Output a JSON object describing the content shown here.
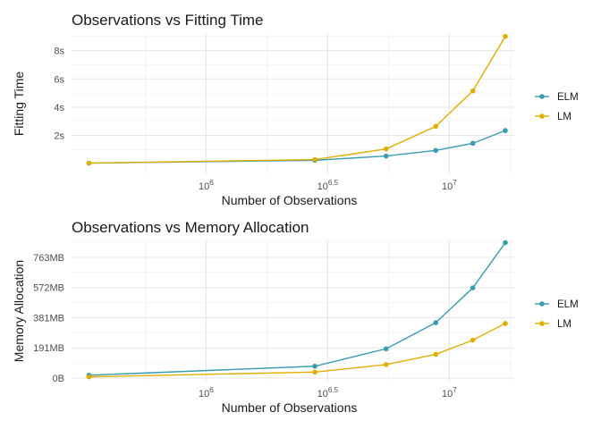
{
  "chart_data": [
    {
      "type": "line",
      "title": "Observations vs Fitting Time",
      "xlabel": "Number of Observations",
      "ylabel": "Fitting Time",
      "x_scale": "log10",
      "x": [
        330000,
        2800000,
        5500000,
        8800000,
        12500000,
        17000000
      ],
      "xlim": [
        280000,
        18500000
      ],
      "x_ticks": [
        {
          "base": "10",
          "exp": "6",
          "value": 1000000
        },
        {
          "base": "10",
          "exp": "6.5",
          "value": 3162278
        },
        {
          "base": "10",
          "exp": "7",
          "value": 10000000
        }
      ],
      "ylim": [
        -0.8,
        9.3
      ],
      "y_ticks": [
        {
          "label": "2s",
          "value": 2
        },
        {
          "label": "4s",
          "value": 4
        },
        {
          "label": "6s",
          "value": 6
        },
        {
          "label": "8s",
          "value": 8
        }
      ],
      "series": [
        {
          "name": "ELM",
          "color": "#3a9bb0",
          "values": [
            0.05,
            0.25,
            0.55,
            0.95,
            1.45,
            2.35
          ]
        },
        {
          "name": "LM",
          "color": "#e0ae00",
          "values": [
            0.05,
            0.3,
            1.05,
            2.65,
            5.15,
            9.0
          ]
        }
      ],
      "legend": "right",
      "grid": true
    },
    {
      "type": "line",
      "title": "Observations vs Memory Allocation",
      "xlabel": "Number of Observations",
      "ylabel": "Memory Allocation",
      "x_scale": "log10",
      "x": [
        330000,
        2800000,
        5500000,
        8800000,
        12500000,
        17000000
      ],
      "xlim": [
        280000,
        18500000
      ],
      "x_ticks": [
        {
          "base": "10",
          "exp": "6",
          "value": 1000000
        },
        {
          "base": "10",
          "exp": "6.5",
          "value": 3162278
        },
        {
          "base": "10",
          "exp": "7",
          "value": 10000000
        }
      ],
      "ylim": [
        -28,
        875
      ],
      "y_ticks": [
        {
          "label": "0B",
          "value": 0
        },
        {
          "label": "191MB",
          "value": 191
        },
        {
          "label": "381MB",
          "value": 381
        },
        {
          "label": "572MB",
          "value": 572
        },
        {
          "label": "763MB",
          "value": 763
        }
      ],
      "series": [
        {
          "name": "ELM",
          "color": "#3a9bb0",
          "values": [
            18,
            75,
            185,
            350,
            570,
            855
          ]
        },
        {
          "name": "LM",
          "color": "#e0ae00",
          "values": [
            8,
            38,
            85,
            150,
            240,
            345
          ]
        }
      ],
      "legend": "right",
      "grid": true
    }
  ]
}
